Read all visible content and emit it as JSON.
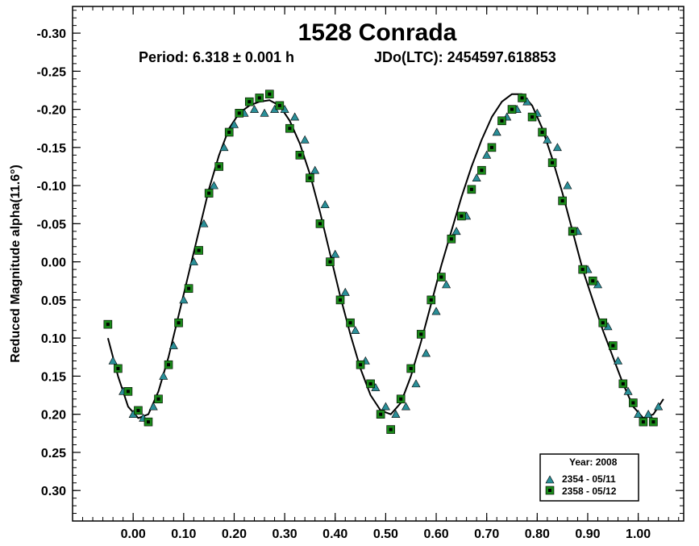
{
  "chart_data": {
    "type": "scatter",
    "title": "1528 Conrada",
    "subtitle_period": "Period: 6.318 ± 0.001 h",
    "subtitle_epoch": "JDo(LTC): 2454597.618853",
    "ylabel": "Reduced Magnitude alpha(11.6°)",
    "xlabel": "",
    "xlim": [
      -0.12,
      1.09
    ],
    "ylim": [
      0.34,
      -0.335
    ],
    "y_inverted": true,
    "x_ticks": [
      "0.00",
      "0.10",
      "0.20",
      "0.30",
      "0.40",
      "0.50",
      "0.60",
      "0.70",
      "0.80",
      "0.90",
      "1.00"
    ],
    "x_tick_values": [
      0,
      0.1,
      0.2,
      0.3,
      0.4,
      0.5,
      0.6,
      0.7,
      0.8,
      0.9,
      1.0
    ],
    "y_ticks": [
      "-0.30",
      "-0.25",
      "-0.20",
      "-0.15",
      "-0.10",
      "-0.05",
      "0.00",
      "0.05",
      "0.10",
      "0.15",
      "0.20",
      "0.25",
      "0.30"
    ],
    "y_tick_values": [
      -0.3,
      -0.25,
      -0.2,
      -0.15,
      -0.1,
      -0.05,
      0.0,
      0.05,
      0.1,
      0.15,
      0.2,
      0.25,
      0.3
    ],
    "grid": false,
    "legend": {
      "placement": "bottom-right",
      "title": "Year: 2008",
      "entries": [
        "2354 - 05/11",
        "2358 - 05/12"
      ]
    },
    "colors": {
      "series1": "#2a8f98",
      "series2": "#1a8a1a",
      "fit_curve": "#000000"
    },
    "fit_curve": {
      "x": [
        -0.05,
        -0.03,
        -0.01,
        0.01,
        0.03,
        0.05,
        0.07,
        0.09,
        0.11,
        0.13,
        0.15,
        0.17,
        0.19,
        0.21,
        0.23,
        0.25,
        0.27,
        0.29,
        0.31,
        0.33,
        0.35,
        0.37,
        0.39,
        0.41,
        0.43,
        0.45,
        0.47,
        0.49,
        0.51,
        0.53,
        0.55,
        0.57,
        0.59,
        0.61,
        0.63,
        0.65,
        0.67,
        0.69,
        0.71,
        0.73,
        0.75,
        0.77,
        0.79,
        0.81,
        0.83,
        0.85,
        0.87,
        0.89,
        0.91,
        0.93,
        0.95,
        0.97,
        0.99,
        1.01,
        1.03,
        1.05
      ],
      "y": [
        0.1,
        0.15,
        0.19,
        0.205,
        0.2,
        0.17,
        0.125,
        0.07,
        0.015,
        -0.04,
        -0.095,
        -0.14,
        -0.175,
        -0.195,
        -0.205,
        -0.21,
        -0.212,
        -0.205,
        -0.185,
        -0.155,
        -0.115,
        -0.065,
        -0.01,
        0.045,
        0.095,
        0.14,
        0.175,
        0.195,
        0.2,
        0.185,
        0.15,
        0.105,
        0.055,
        0.005,
        -0.04,
        -0.085,
        -0.125,
        -0.16,
        -0.19,
        -0.21,
        -0.22,
        -0.22,
        -0.205,
        -0.175,
        -0.135,
        -0.09,
        -0.04,
        0.01,
        0.05,
        0.09,
        0.125,
        0.16,
        0.19,
        0.205,
        0.2,
        0.18
      ]
    },
    "series": [
      {
        "name": "2354 - 05/11",
        "marker": "triangle",
        "x": [
          -0.04,
          -0.02,
          0.0,
          0.02,
          0.04,
          0.06,
          0.08,
          0.1,
          0.12,
          0.14,
          0.16,
          0.18,
          0.2,
          0.22,
          0.24,
          0.26,
          0.28,
          0.3,
          0.32,
          0.34,
          0.36,
          0.38,
          0.4,
          0.42,
          0.44,
          0.46,
          0.48,
          0.5,
          0.52,
          0.54,
          0.56,
          0.58,
          0.6,
          0.62,
          0.64,
          0.66,
          0.68,
          0.7,
          0.72,
          0.74,
          0.76,
          0.78,
          0.8,
          0.82,
          0.84,
          0.86,
          0.88,
          0.9,
          0.92,
          0.94,
          0.96,
          0.98,
          1.0,
          1.02,
          1.04
        ],
        "y": [
          0.13,
          0.17,
          0.2,
          0.205,
          0.19,
          0.15,
          0.11,
          0.05,
          0.0,
          -0.05,
          -0.1,
          -0.15,
          -0.18,
          -0.195,
          -0.2,
          -0.195,
          -0.2,
          -0.2,
          -0.19,
          -0.16,
          -0.12,
          -0.075,
          -0.01,
          0.04,
          0.09,
          0.13,
          0.165,
          0.19,
          0.2,
          0.19,
          0.16,
          0.12,
          0.065,
          0.03,
          -0.04,
          -0.06,
          -0.11,
          -0.14,
          -0.17,
          -0.19,
          -0.2,
          -0.21,
          -0.195,
          -0.16,
          -0.15,
          -0.1,
          -0.04,
          0.01,
          0.03,
          0.085,
          0.13,
          0.17,
          0.2,
          0.2,
          0.19
        ]
      },
      {
        "name": "2358 - 05/12",
        "marker": "square",
        "x": [
          -0.05,
          -0.03,
          -0.01,
          0.01,
          0.03,
          0.05,
          0.07,
          0.09,
          0.11,
          0.13,
          0.15,
          0.17,
          0.19,
          0.21,
          0.23,
          0.25,
          0.27,
          0.29,
          0.31,
          0.33,
          0.35,
          0.37,
          0.39,
          0.41,
          0.43,
          0.45,
          0.47,
          0.49,
          0.51,
          0.53,
          0.55,
          0.57,
          0.59,
          0.61,
          0.63,
          0.65,
          0.67,
          0.69,
          0.71,
          0.73,
          0.75,
          0.77,
          0.79,
          0.81,
          0.83,
          0.85,
          0.87,
          0.89,
          0.91,
          0.93,
          0.95,
          0.97,
          0.99,
          1.01,
          1.03
        ],
        "y": [
          0.082,
          0.14,
          0.17,
          0.195,
          0.21,
          0.18,
          0.135,
          0.08,
          0.035,
          -0.015,
          -0.09,
          -0.125,
          -0.17,
          -0.195,
          -0.21,
          -0.215,
          -0.22,
          -0.205,
          -0.175,
          -0.14,
          -0.11,
          -0.05,
          0.0,
          0.05,
          0.08,
          0.135,
          0.16,
          0.2,
          0.22,
          0.18,
          0.14,
          0.095,
          0.05,
          0.02,
          -0.03,
          -0.06,
          -0.095,
          -0.12,
          -0.15,
          -0.185,
          -0.2,
          -0.215,
          -0.19,
          -0.17,
          -0.13,
          -0.08,
          -0.04,
          0.01,
          0.025,
          0.08,
          0.11,
          0.16,
          0.185,
          0.21,
          0.21
        ]
      }
    ]
  }
}
